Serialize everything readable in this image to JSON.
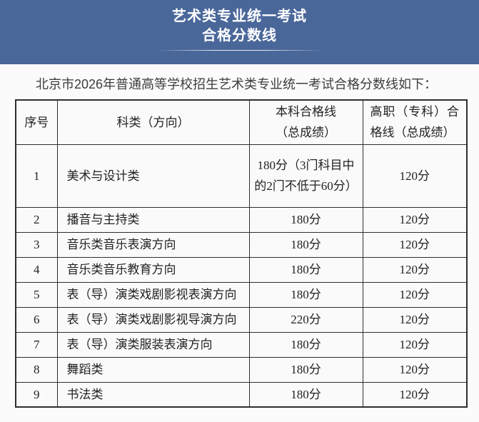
{
  "banner": {
    "title_line1": "艺术类专业统一考试",
    "title_line2": "合格分数线",
    "bg_color": "#4a679a"
  },
  "intro": "北京市2026年普通高等学校招生艺术类专业统一考试合格分数线如下：",
  "table": {
    "headers": {
      "no": "序号",
      "category": "科类（方向）",
      "undergrad_line1": "本科合格线",
      "undergrad_line2": "（总成绩）",
      "vocational": "高职（专科）合格线（总成绩）"
    },
    "rows": [
      {
        "no": "1",
        "category": "美术与设计类",
        "undergrad": "180分（3门科目中的2门不低于60分）",
        "vocational": "120分"
      },
      {
        "no": "2",
        "category": "播音与主持类",
        "undergrad": "180分",
        "vocational": "120分"
      },
      {
        "no": "3",
        "category": "音乐类音乐表演方向",
        "undergrad": "180分",
        "vocational": "120分"
      },
      {
        "no": "4",
        "category": "音乐类音乐教育方向",
        "undergrad": "180分",
        "vocational": "120分"
      },
      {
        "no": "5",
        "category": "表（导）演类戏剧影视表演方向",
        "undergrad": "180分",
        "vocational": "120分"
      },
      {
        "no": "6",
        "category": "表（导）演类戏剧影视导演方向",
        "undergrad": "220分",
        "vocational": "120分"
      },
      {
        "no": "7",
        "category": "表（导）演类服装表演方向",
        "undergrad": "180分",
        "vocational": "120分"
      },
      {
        "no": "8",
        "category": "舞蹈类",
        "undergrad": "180分",
        "vocational": "120分"
      },
      {
        "no": "9",
        "category": "书法类",
        "undergrad": "180分",
        "vocational": "120分"
      }
    ]
  }
}
